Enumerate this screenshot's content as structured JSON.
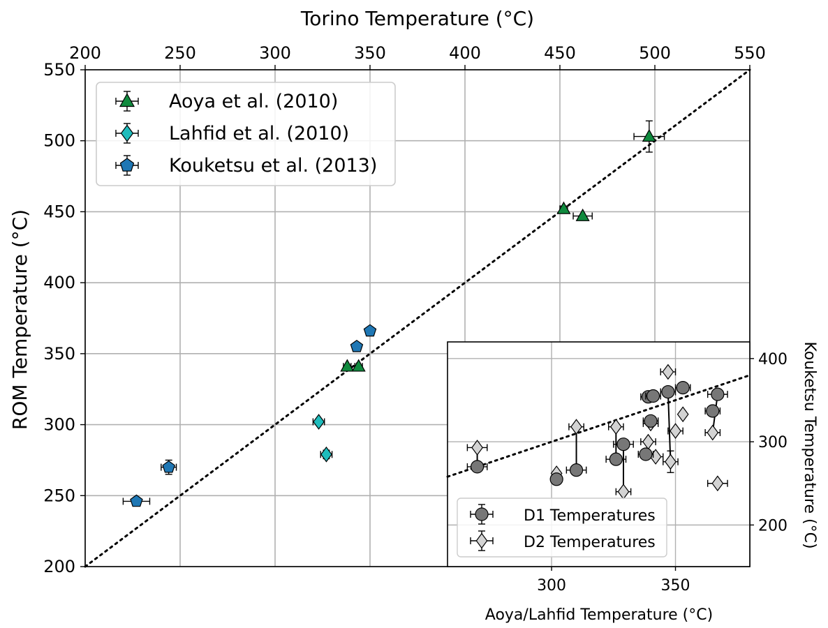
{
  "chart_data": [
    {
      "type": "scatter",
      "xlabel": "Torino Temperature (°C)",
      "ylabel": "ROM Temperature (°C)",
      "xlim": [
        200,
        550
      ],
      "ylim": [
        200,
        550
      ],
      "xticks": [
        200,
        250,
        300,
        350,
        400,
        450,
        500,
        550
      ],
      "yticks": [
        200,
        250,
        300,
        350,
        400,
        450,
        500,
        550
      ],
      "x_axis_position": "top",
      "grid": true,
      "legend_position": "top-left",
      "reference_line": {
        "style": "dotted",
        "from": [
          200,
          200
        ],
        "to": [
          550,
          550
        ]
      },
      "series": [
        {
          "name": "Aoya et al. (2010)",
          "marker": "triangle",
          "color": "#108a3e",
          "points": [
            {
              "x": 497,
              "y": 503,
              "xerr": 8,
              "yerr": 11
            },
            {
              "x": 452,
              "y": 452,
              "xerr": 2,
              "yerr": 2
            },
            {
              "x": 462,
              "y": 447,
              "xerr": 5,
              "yerr": 0
            },
            {
              "x": 338,
              "y": 341,
              "xerr": 2,
              "yerr": 0
            },
            {
              "x": 344,
              "y": 341,
              "xerr": 2,
              "yerr": 0
            }
          ]
        },
        {
          "name": "Lahfid et al. (2010)",
          "marker": "diamond",
          "color": "#1fbcbc",
          "points": [
            {
              "x": 323,
              "y": 302,
              "xerr": 3,
              "yerr": 2
            },
            {
              "x": 327,
              "y": 279,
              "xerr": 3,
              "yerr": 3
            }
          ]
        },
        {
          "name": "Kouketsu et al. (2013)",
          "marker": "pentagon",
          "color": "#1f77b4",
          "points": [
            {
              "x": 227,
              "y": 246,
              "xerr": 7,
              "yerr": 0
            },
            {
              "x": 244,
              "y": 270,
              "xerr": 4,
              "yerr": 5
            },
            {
              "x": 343,
              "y": 355,
              "xerr": 0,
              "yerr": 0
            },
            {
              "x": 350,
              "y": 366,
              "xerr": 0,
              "yerr": 0
            }
          ]
        }
      ]
    },
    {
      "type": "scatter",
      "xlabel": "Aoya/Lahfid Temperature (°C)",
      "ylabel": "Kouketsu Temperature (°C)",
      "xlim": [
        258,
        380
      ],
      "ylim": [
        150,
        420
      ],
      "xticks": [
        300,
        350
      ],
      "yticks": [
        200,
        300,
        400
      ],
      "y_axis_position": "right",
      "grid": true,
      "legend_position": "bottom-left",
      "reference_line": {
        "style": "dotted",
        "from": [
          258,
          258
        ],
        "to": [
          380,
          380
        ]
      },
      "series": [
        {
          "name": "D1 Temperatures",
          "marker": "circle",
          "color": "#777777",
          "points": [
            {
              "x": 270,
              "y": 270,
              "xerr": 4,
              "yerr": 0
            },
            {
              "x": 302,
              "y": 255,
              "xerr": 0,
              "yerr": 0
            },
            {
              "x": 310,
              "y": 266,
              "xerr": 4,
              "yerr": 0
            },
            {
              "x": 326,
              "y": 279,
              "xerr": 4,
              "yerr": 0
            },
            {
              "x": 329,
              "y": 297,
              "xerr": 4,
              "yerr": 0
            },
            {
              "x": 338,
              "y": 285,
              "xerr": 3,
              "yerr": 0
            },
            {
              "x": 340,
              "y": 325,
              "xerr": 3,
              "yerr": 0
            },
            {
              "x": 339,
              "y": 354,
              "xerr": 3,
              "yerr": 0
            },
            {
              "x": 341,
              "y": 355,
              "xerr": 3,
              "yerr": 0
            },
            {
              "x": 347,
              "y": 360,
              "xerr": 3,
              "yerr": 0
            },
            {
              "x": 353,
              "y": 365,
              "xerr": 3,
              "yerr": 0
            },
            {
              "x": 365,
              "y": 337,
              "xerr": 3,
              "yerr": 0
            },
            {
              "x": 367,
              "y": 357,
              "xerr": 4,
              "yerr": 0
            }
          ]
        },
        {
          "name": "D2 Temperatures",
          "marker": "diamond",
          "color": "#d3d3d3",
          "points": [
            {
              "x": 270,
              "y": 293,
              "xerr": 4,
              "yerr": 0
            },
            {
              "x": 302,
              "y": 262,
              "xerr": 0,
              "yerr": 0
            },
            {
              "x": 310,
              "y": 318,
              "xerr": 3,
              "yerr": 0
            },
            {
              "x": 326,
              "y": 318,
              "xerr": 3,
              "yerr": 0
            },
            {
              "x": 329,
              "y": 240,
              "xerr": 3,
              "yerr": 0
            },
            {
              "x": 339,
              "y": 300,
              "xerr": 3,
              "yerr": 0
            },
            {
              "x": 340,
              "y": 322,
              "xerr": 3,
              "yerr": 0
            },
            {
              "x": 342,
              "y": 282,
              "xerr": 3,
              "yerr": 0
            },
            {
              "x": 347,
              "y": 384,
              "xerr": 3,
              "yerr": 0
            },
            {
              "x": 348,
              "y": 276,
              "xerr": 3,
              "yerr": 13
            },
            {
              "x": 350,
              "y": 313,
              "xerr": 3,
              "yerr": 0
            },
            {
              "x": 353,
              "y": 333,
              "xerr": 0,
              "yerr": 0
            },
            {
              "x": 365,
              "y": 311,
              "xerr": 3,
              "yerr": 0
            },
            {
              "x": 367,
              "y": 250,
              "xerr": 4,
              "yerr": 0
            }
          ]
        }
      ]
    }
  ]
}
